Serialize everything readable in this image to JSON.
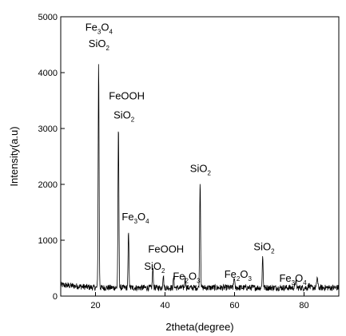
{
  "chart_data": {
    "type": "line",
    "title": "",
    "xlabel": "2theta(degree)",
    "ylabel": "Intensity(a.u)",
    "xlim": [
      10,
      90
    ],
    "ylim": [
      0,
      5000
    ],
    "x_ticks": [
      20,
      40,
      60,
      80
    ],
    "y_ticks": [
      0,
      1000,
      2000,
      3000,
      4000,
      5000
    ],
    "grid": false,
    "legend": "none",
    "line_color": "#000000",
    "baseline": 150,
    "peaks": [
      {
        "x": 20.9,
        "y": 4180
      },
      {
        "x": 26.6,
        "y": 3030
      },
      {
        "x": 29.5,
        "y": 1140
      },
      {
        "x": 36.5,
        "y": 490
      },
      {
        "x": 39.5,
        "y": 380
      },
      {
        "x": 42.5,
        "y": 330
      },
      {
        "x": 45.8,
        "y": 330
      },
      {
        "x": 50.1,
        "y": 2080
      },
      {
        "x": 59.9,
        "y": 340
      },
      {
        "x": 68.1,
        "y": 710
      },
      {
        "x": 77.6,
        "y": 290
      },
      {
        "x": 81.4,
        "y": 210
      },
      {
        "x": 83.8,
        "y": 350
      }
    ],
    "annotations": [
      {
        "x": 21.0,
        "y": 4750,
        "parts": [
          {
            "t": "Fe"
          },
          {
            "t": "3",
            "sub": true
          },
          {
            "t": "O"
          },
          {
            "t": "4",
            "sub": true
          }
        ]
      },
      {
        "x": 21.0,
        "y": 4460,
        "parts": [
          {
            "t": "SiO"
          },
          {
            "t": "2",
            "sub": true
          }
        ]
      },
      {
        "x": 29.0,
        "y": 3520,
        "parts": [
          {
            "t": "FeOOH"
          }
        ]
      },
      {
        "x": 28.2,
        "y": 3180,
        "parts": [
          {
            "t": "SiO"
          },
          {
            "t": "2",
            "sub": true
          }
        ]
      },
      {
        "x": 31.5,
        "y": 1360,
        "parts": [
          {
            "t": "Fe"
          },
          {
            "t": "3",
            "sub": true
          },
          {
            "t": "O"
          },
          {
            "t": "4",
            "sub": true
          }
        ]
      },
      {
        "x": 40.3,
        "y": 780,
        "parts": [
          {
            "t": "FeOOH"
          }
        ]
      },
      {
        "x": 37.0,
        "y": 470,
        "parts": [
          {
            "t": "SiO"
          },
          {
            "t": "2",
            "sub": true
          }
        ]
      },
      {
        "x": 46.2,
        "y": 290,
        "parts": [
          {
            "t": "Fe"
          },
          {
            "t": "2",
            "sub": true
          },
          {
            "t": "O"
          },
          {
            "t": "3",
            "sub": true
          }
        ]
      },
      {
        "x": 50.2,
        "y": 2220,
        "parts": [
          {
            "t": "SiO"
          },
          {
            "t": "2",
            "sub": true
          }
        ]
      },
      {
        "x": 61.0,
        "y": 330,
        "parts": [
          {
            "t": "Fe"
          },
          {
            "t": "2",
            "sub": true
          },
          {
            "t": "O"
          },
          {
            "t": "3",
            "sub": true
          }
        ]
      },
      {
        "x": 68.5,
        "y": 820,
        "parts": [
          {
            "t": "SiO"
          },
          {
            "t": "2",
            "sub": true
          }
        ]
      },
      {
        "x": 76.8,
        "y": 260,
        "parts": [
          {
            "t": "Fe"
          },
          {
            "t": "3",
            "sub": true
          },
          {
            "t": "O"
          },
          {
            "t": "4",
            "sub": true
          }
        ]
      }
    ]
  }
}
